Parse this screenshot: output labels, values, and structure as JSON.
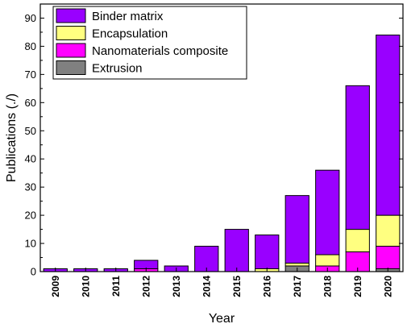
{
  "chart_data": {
    "type": "bar",
    "stacked": true,
    "xlabel": "Year",
    "ylabel": "Publications (./)",
    "ylim": [
      0,
      95
    ],
    "yticks": [
      0,
      10,
      20,
      30,
      40,
      50,
      60,
      70,
      80,
      90
    ],
    "grid": false,
    "legend_position": "top-left",
    "categories": [
      "2009",
      "2010",
      "2011",
      "2012",
      "2013",
      "2014",
      "2015",
      "2016",
      "2017",
      "2018",
      "2019",
      "2020"
    ],
    "series": [
      {
        "name": "Extrusion",
        "color": "#808080",
        "values": [
          0,
          0,
          0,
          0,
          0,
          0,
          0,
          0,
          2,
          0,
          0,
          1
        ]
      },
      {
        "name": "Nanomaterials composite",
        "color": "#ff00ff",
        "values": [
          0,
          0,
          0,
          1,
          0,
          0,
          0,
          0,
          0,
          2,
          7,
          8
        ]
      },
      {
        "name": "Encapsulation",
        "color": "#ffff80",
        "values": [
          0,
          0,
          0,
          0,
          0,
          0,
          0,
          1,
          1,
          4,
          8,
          11
        ]
      },
      {
        "name": "Binder matrix",
        "color": "#9900ff",
        "values": [
          1,
          1,
          1,
          3,
          2,
          9,
          15,
          12,
          24,
          30,
          51,
          64
        ]
      }
    ],
    "legend_order": [
      "Binder matrix",
      "Encapsulation",
      "Nanomaterials composite",
      "Extrusion"
    ]
  }
}
